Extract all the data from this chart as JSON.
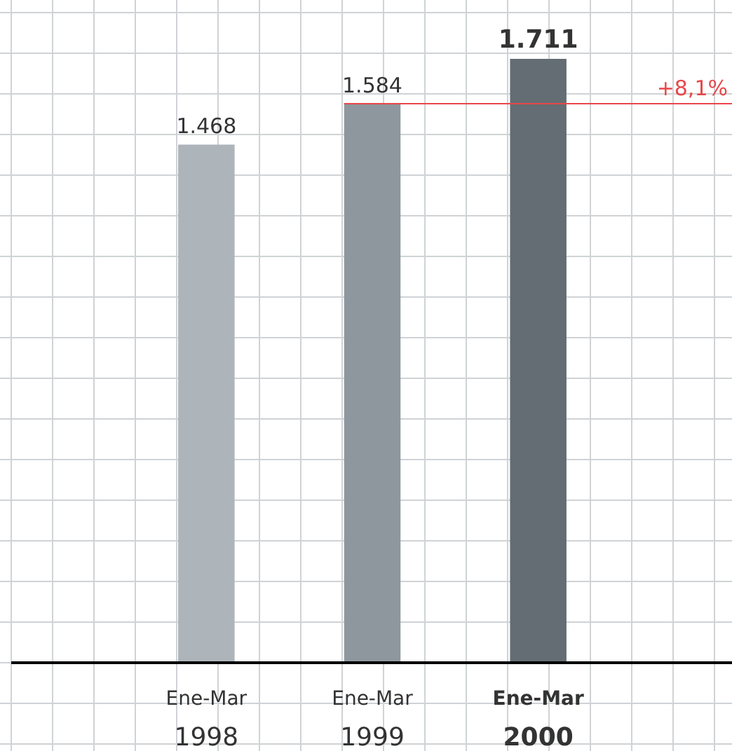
{
  "chart_data": {
    "type": "bar",
    "categories": [
      "Ene-Mar\n1998",
      "Ene-Mar\n1999",
      "Ene-Mar\n2000"
    ],
    "values": [
      1468,
      1584,
      1711
    ],
    "colors": [
      "#adb4ba",
      "#8e979d",
      "#636d73"
    ],
    "value_labels": [
      "1.468",
      "1.584",
      "1.711"
    ],
    "ref_lines": [
      {
        "axis": "y",
        "value": 1584,
        "color": "#e8474a"
      }
    ],
    "annotations": [
      "+8,1%"
    ],
    "grid": true
  }
}
